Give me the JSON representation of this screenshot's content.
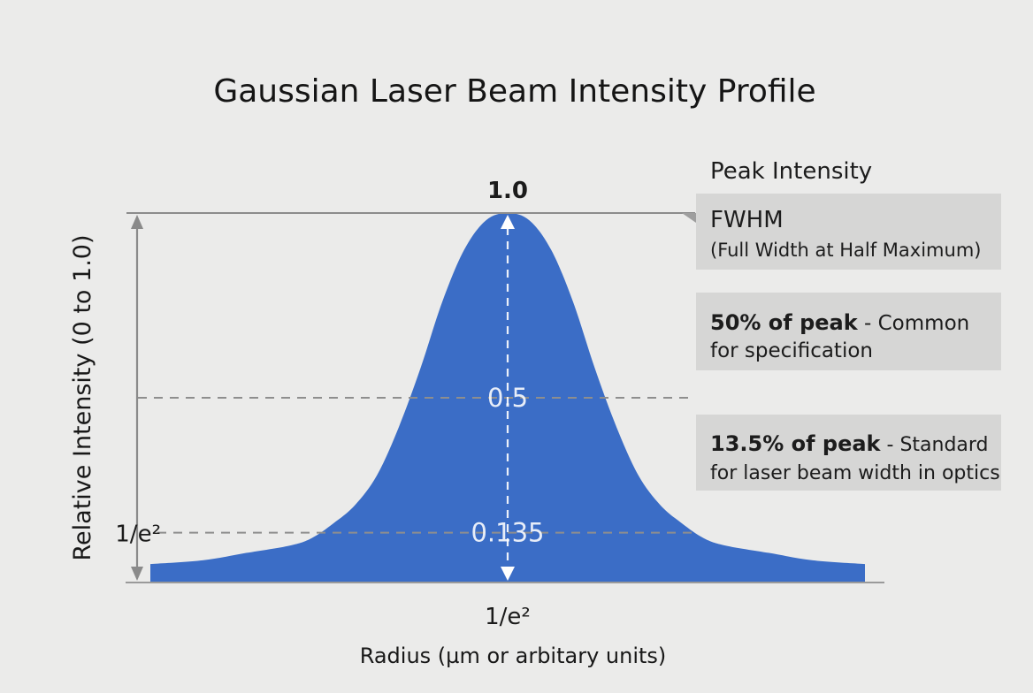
{
  "chart_data": {
    "type": "area",
    "title": "Gaussian Laser Beam Intensity Profile",
    "ylabel": "Relative Intensity (0 to 1.0)",
    "xlabel": "Radius (µm or arbitary units)",
    "ylim": [
      0,
      1.0
    ],
    "xlim": [
      -1.64,
      1.64
    ],
    "grid": false,
    "legend": "none",
    "fill_color": "#3b6dc6",
    "reference_levels": [
      {
        "value": 1.0,
        "label": "1.0"
      },
      {
        "value": 0.5,
        "label": "0.5"
      },
      {
        "value": 0.135,
        "label": "0.135",
        "axis_label": "1/e²"
      }
    ],
    "x_tick_label": "1/e²",
    "series": [
      {
        "x": [
          -1.64,
          -1.4,
          -1.2,
          -1.0,
          -0.9,
          -0.8,
          -0.7,
          -0.6,
          -0.5,
          -0.4,
          -0.3,
          -0.2,
          -0.1,
          0.0,
          0.1,
          0.2,
          0.3,
          0.4,
          0.5,
          0.6,
          0.7,
          0.8,
          0.9,
          1.0,
          1.2,
          1.4,
          1.64
        ],
        "y": [
          0.05,
          0.06,
          0.08,
          0.1,
          0.12,
          0.16,
          0.21,
          0.29,
          0.42,
          0.58,
          0.76,
          0.9,
          0.98,
          1.0,
          0.98,
          0.9,
          0.76,
          0.58,
          0.42,
          0.29,
          0.21,
          0.16,
          0.12,
          0.1,
          0.08,
          0.06,
          0.05
        ]
      }
    ],
    "annotations": [
      {
        "heading": "Peak Intensity"
      },
      {
        "heading": "FWHM",
        "text": "(Full Width at Half Maximum)"
      },
      {
        "bold": "50% of peak",
        "text": " - Common",
        "text2": "for specification"
      },
      {
        "bold": "13.5% of peak",
        "text": " - Standard",
        "text2": "for laser beam width in optics"
      }
    ]
  }
}
